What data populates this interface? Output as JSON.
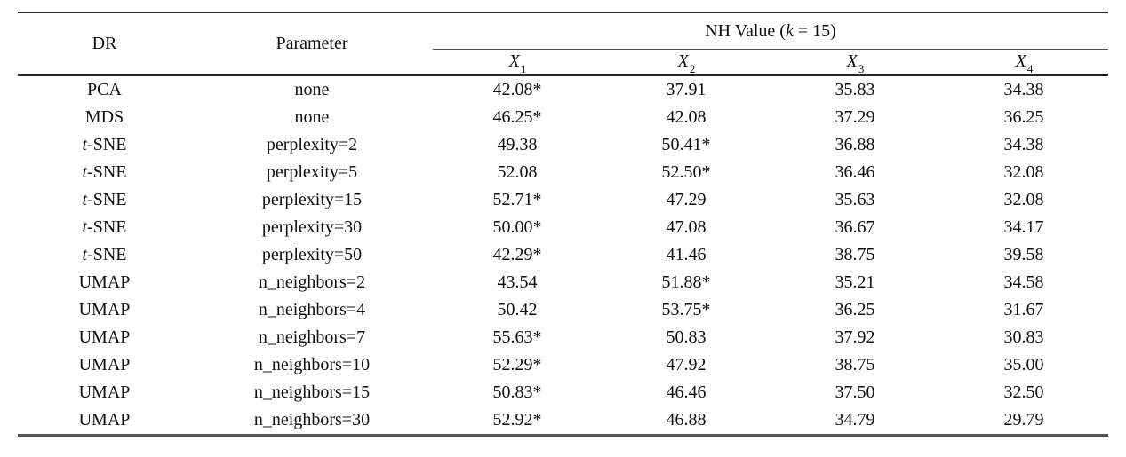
{
  "page": {
    "background_color": "#ffffff",
    "text_color": "#0f0f0f",
    "rule_color": "#2f2f2f"
  },
  "table": {
    "headers": {
      "dr": "DR",
      "parameter": "Parameter",
      "nh_value": {
        "prefix": "NH Value (",
        "k": "k",
        "suffix": " = 15)"
      },
      "x_columns": [
        {
          "base": "X",
          "sub": "1"
        },
        {
          "base": "X",
          "sub": "2"
        },
        {
          "base": "X",
          "sub": "3"
        },
        {
          "base": "X",
          "sub": "4"
        }
      ]
    },
    "rows": [
      {
        "dr_italic": "",
        "dr": "PCA",
        "parameter": "none",
        "values": [
          "42.08*",
          "37.91",
          "35.83",
          "34.38"
        ]
      },
      {
        "dr_italic": "",
        "dr": "MDS",
        "parameter": "none",
        "values": [
          "46.25*",
          "42.08",
          "37.29",
          "36.25"
        ]
      },
      {
        "dr_italic": "t",
        "dr": "-SNE",
        "parameter": "perplexity=2",
        "values": [
          "49.38",
          "50.41*",
          "36.88",
          "34.38"
        ]
      },
      {
        "dr_italic": "t",
        "dr": "-SNE",
        "parameter": "perplexity=5",
        "values": [
          "52.08",
          "52.50*",
          "36.46",
          "32.08"
        ]
      },
      {
        "dr_italic": "t",
        "dr": "-SNE",
        "parameter": "perplexity=15",
        "values": [
          "52.71*",
          "47.29",
          "35.63",
          "32.08"
        ]
      },
      {
        "dr_italic": "t",
        "dr": "-SNE",
        "parameter": "perplexity=30",
        "values": [
          "50.00*",
          "47.08",
          "36.67",
          "34.17"
        ]
      },
      {
        "dr_italic": "t",
        "dr": "-SNE",
        "parameter": "perplexity=50",
        "values": [
          "42.29*",
          "41.46",
          "38.75",
          "39.58"
        ]
      },
      {
        "dr_italic": "",
        "dr": "UMAP",
        "parameter": "n_neighbors=2",
        "values": [
          "43.54",
          "51.88*",
          "35.21",
          "34.58"
        ]
      },
      {
        "dr_italic": "",
        "dr": "UMAP",
        "parameter": "n_neighbors=4",
        "values": [
          "50.42",
          "53.75*",
          "36.25",
          "31.67"
        ]
      },
      {
        "dr_italic": "",
        "dr": "UMAP",
        "parameter": "n_neighbors=7",
        "values": [
          "55.63*",
          "50.83",
          "37.92",
          "30.83"
        ]
      },
      {
        "dr_italic": "",
        "dr": "UMAP",
        "parameter": "n_neighbors=10",
        "values": [
          "52.29*",
          "47.92",
          "38.75",
          "35.00"
        ]
      },
      {
        "dr_italic": "",
        "dr": "UMAP",
        "parameter": "n_neighbors=15",
        "values": [
          "50.83*",
          "46.46",
          "37.50",
          "32.50"
        ]
      },
      {
        "dr_italic": "",
        "dr": "UMAP",
        "parameter": "n_neighbors=30",
        "values": [
          "52.92*",
          "46.88",
          "34.79",
          "29.79"
        ]
      }
    ]
  }
}
